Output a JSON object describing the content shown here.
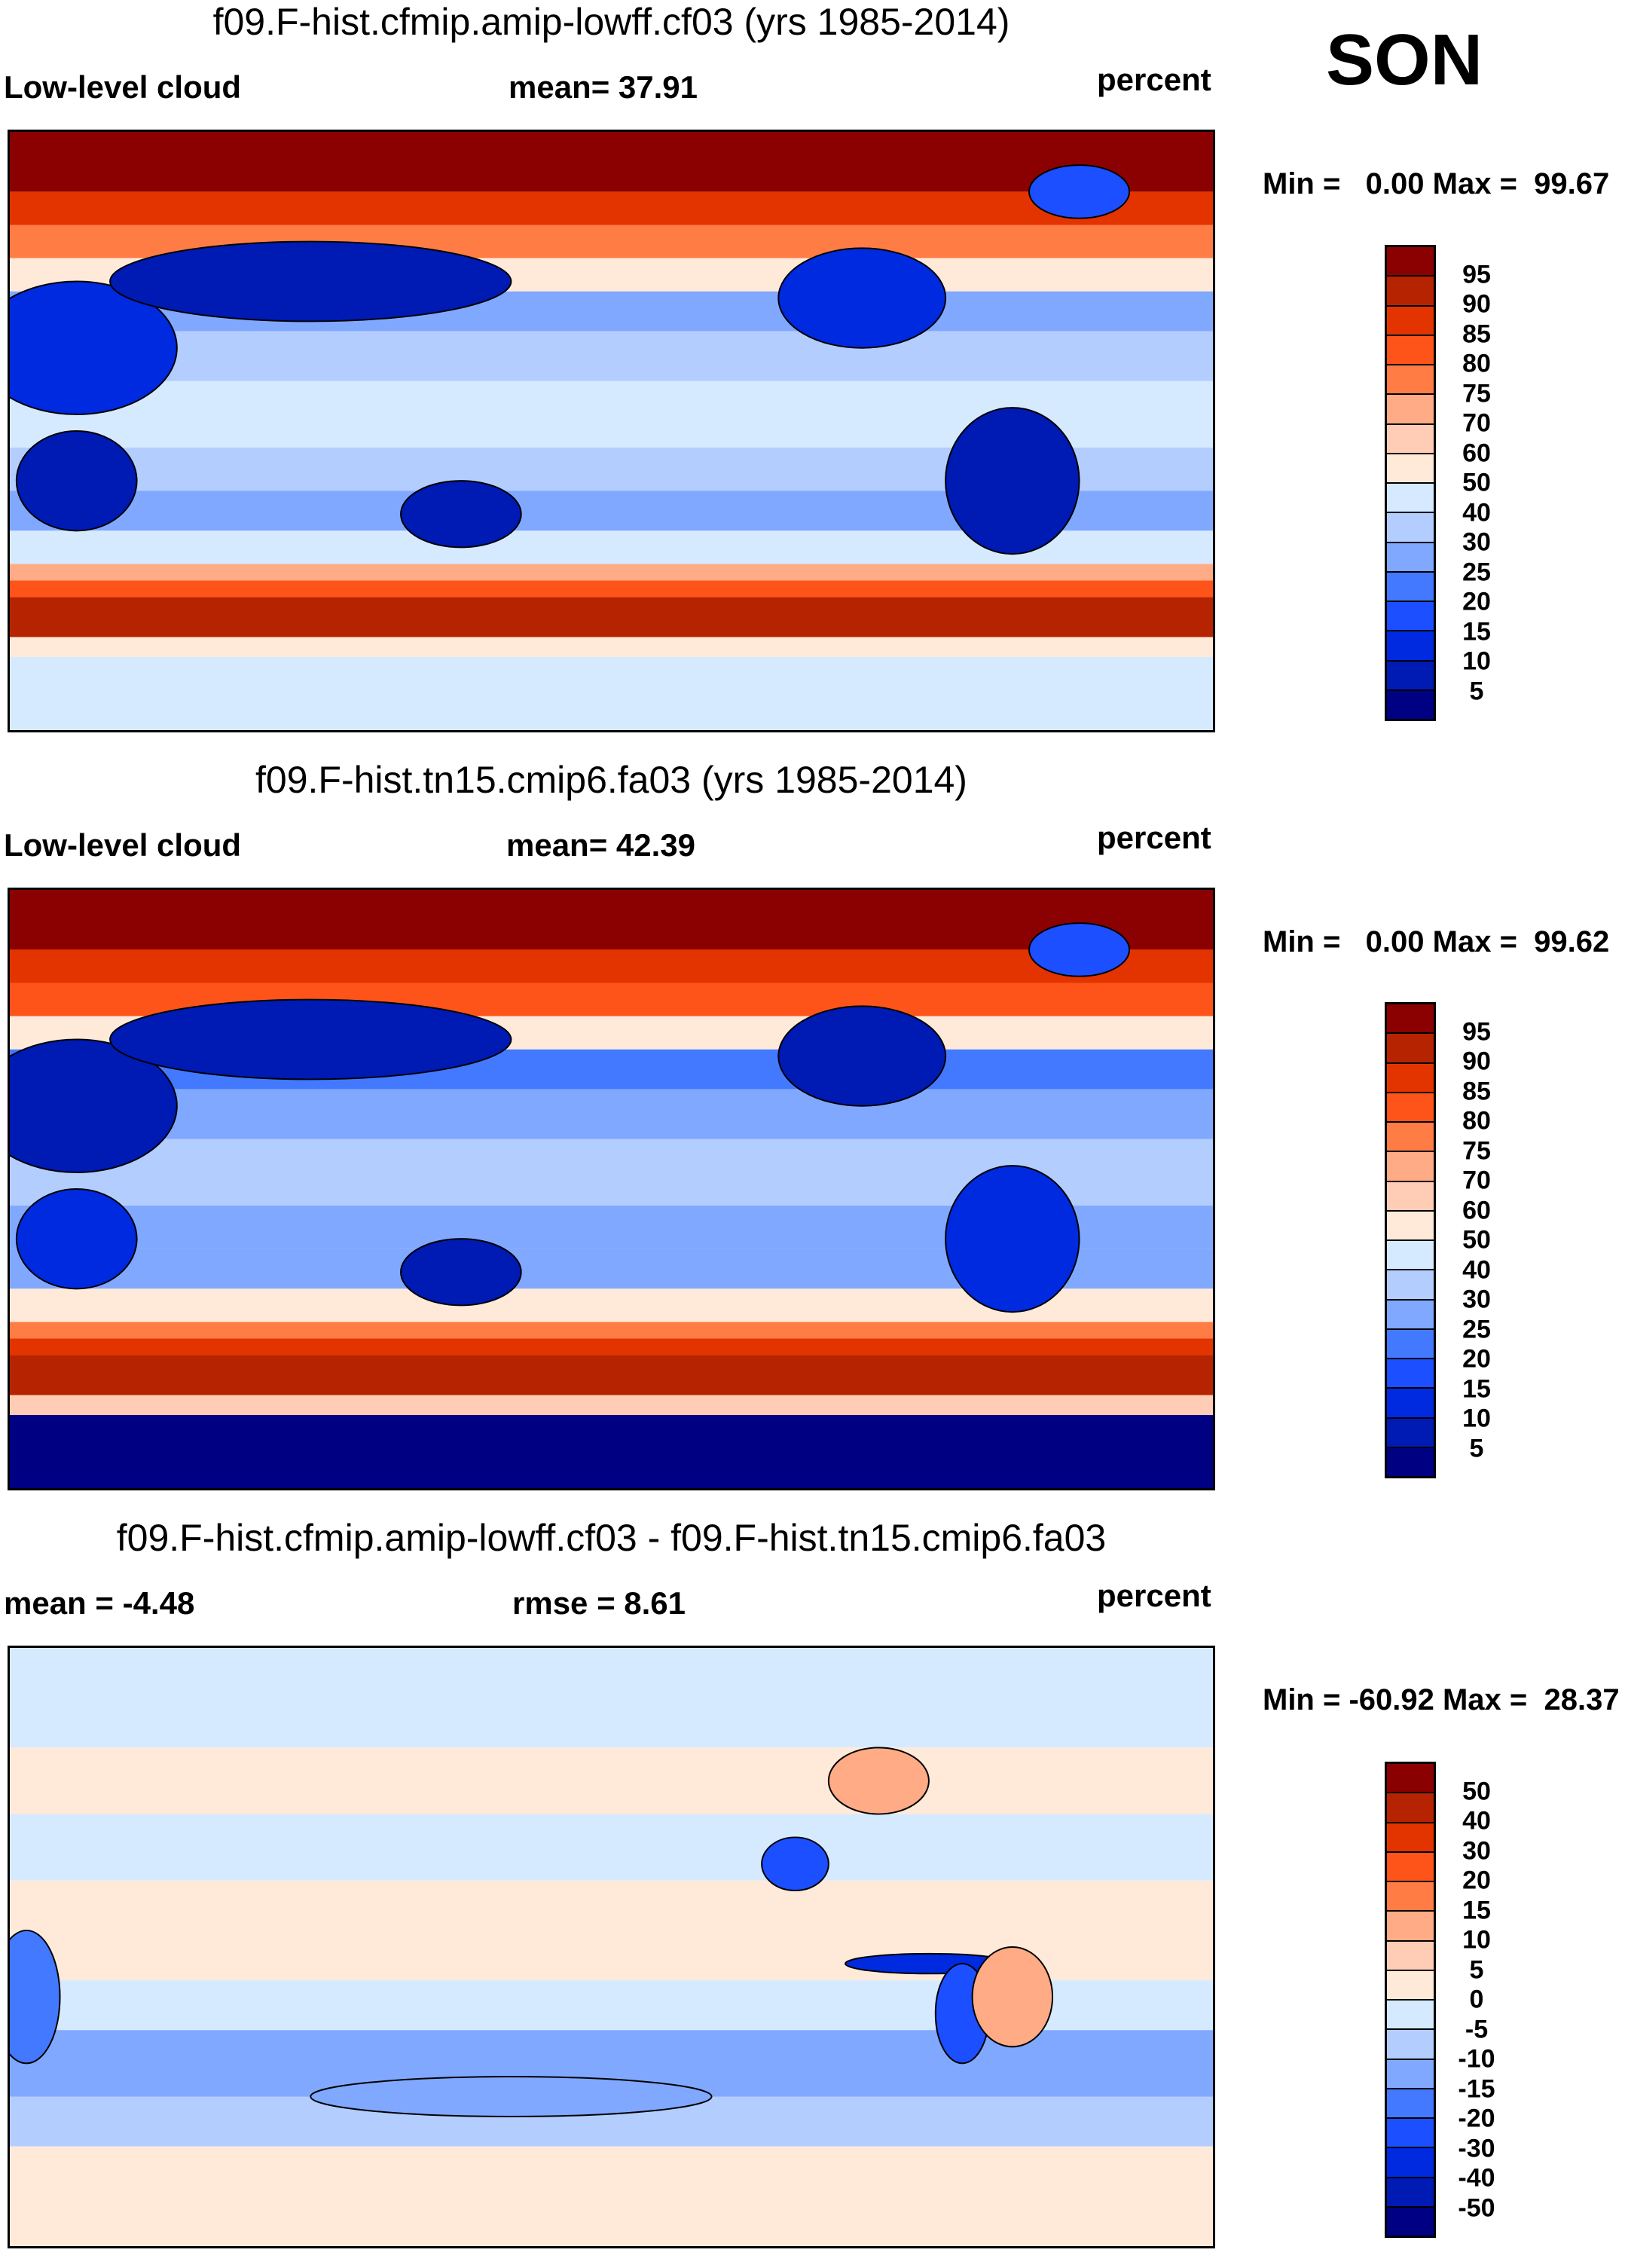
{
  "season": "SON",
  "chart_data": [
    {
      "type": "heatmap",
      "title": "f09.F-hist.cfmip.amip-lowff.cf03 (yrs 1985-2014)",
      "left_label": "Low-level cloud",
      "center_label": "mean=  37.91",
      "units": "percent",
      "minmax": "Min =   0.00 Max =  99.67",
      "stats": {
        "mean": 37.91,
        "min": 0.0,
        "max": 99.67
      },
      "colorbar_levels": [
        "95",
        "90",
        "85",
        "80",
        "75",
        "70",
        "60",
        "50",
        "40",
        "30",
        "25",
        "20",
        "15",
        "10",
        "5"
      ]
    },
    {
      "type": "heatmap",
      "title": "f09.F-hist.tn15.cmip6.fa03 (yrs 1985-2014)",
      "left_label": "Low-level cloud",
      "center_label": "mean=  42.39",
      "units": "percent",
      "minmax": "Min =   0.00 Max =  99.62",
      "stats": {
        "mean": 42.39,
        "min": 0.0,
        "max": 99.62
      },
      "colorbar_levels": [
        "95",
        "90",
        "85",
        "80",
        "75",
        "70",
        "60",
        "50",
        "40",
        "30",
        "25",
        "20",
        "15",
        "10",
        "5"
      ]
    },
    {
      "type": "heatmap",
      "title": "f09.F-hist.cfmip.amip-lowff.cf03 - f09.F-hist.tn15.cmip6.fa03",
      "left_label": "mean =  -4.48",
      "center_label": "rmse =   8.61",
      "units": "percent",
      "minmax": "Min = -60.92 Max =  28.37",
      "stats": {
        "mean": -4.48,
        "rmse": 8.61,
        "min": -60.92,
        "max": 28.37
      },
      "colorbar_levels": [
        "50",
        "40",
        "30",
        "20",
        "15",
        "10",
        "5",
        "0",
        "-5",
        "-10",
        "-15",
        "-20",
        "-30",
        "-40",
        "-50"
      ]
    }
  ],
  "palette": [
    "#8b0000",
    "#b62300",
    "#e33400",
    "#ff5419",
    "#ff7c45",
    "#ffab85",
    "#ffcdb5",
    "#ffeada",
    "#d6eaff",
    "#b3cdff",
    "#80a8ff",
    "#4279ff",
    "#1c4fff",
    "#002adf",
    "#001ab4",
    "#000083"
  ]
}
